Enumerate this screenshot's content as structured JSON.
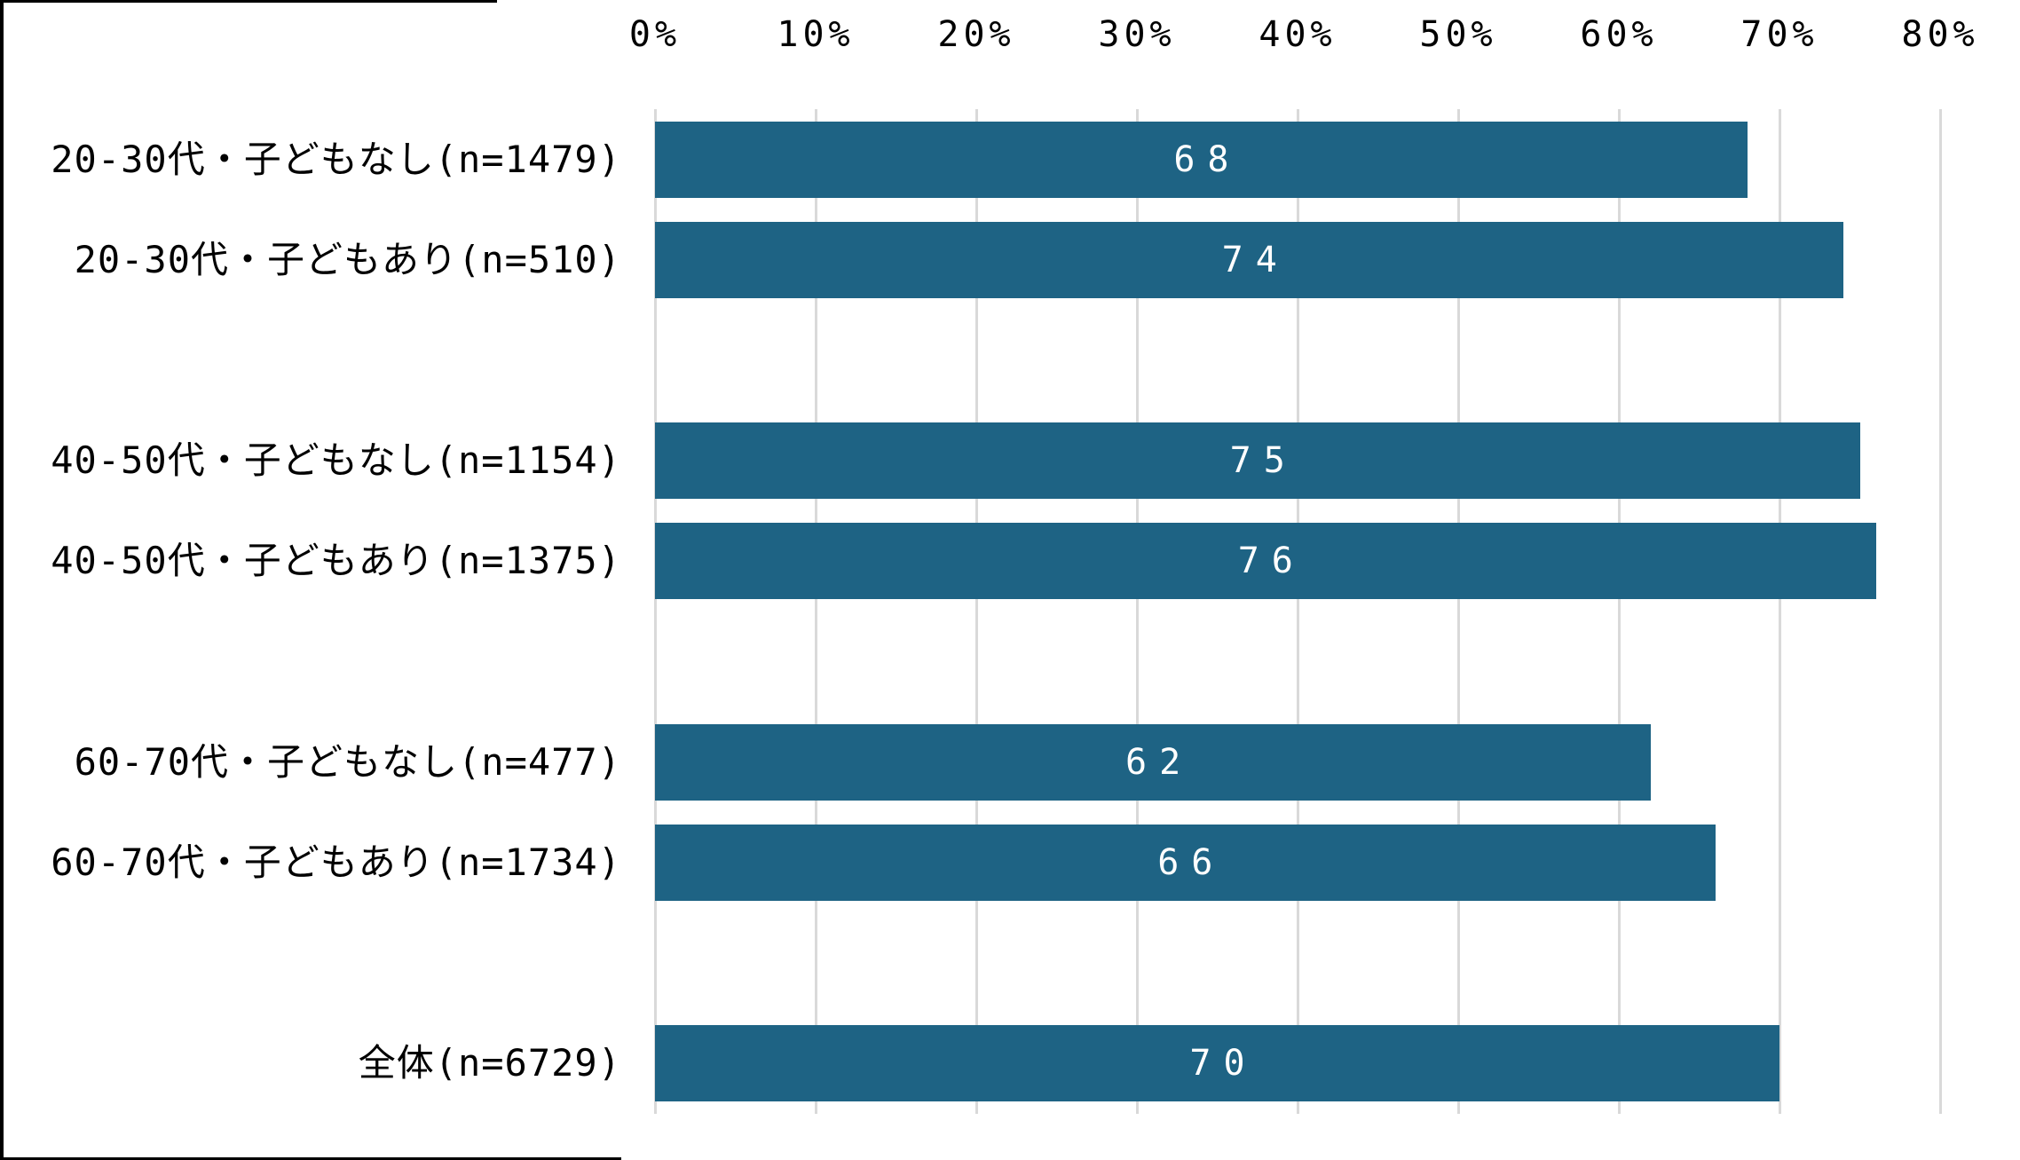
{
  "chart_data": {
    "type": "bar",
    "orientation": "horizontal",
    "title": "",
    "xlabel": "",
    "ylabel": "",
    "xlim": [
      0,
      80
    ],
    "x_tick_labels": [
      "0%",
      "10%",
      "20%",
      "30%",
      "40%",
      "50%",
      "60%",
      "70%",
      "80%"
    ],
    "grid": true,
    "legend": "none",
    "categories": [
      "20-30代・子どもなし(n=1479)",
      "20-30代・子どもあり(n=510)",
      "40-50代・子どもなし(n=1154)",
      "40-50代・子どもあり(n=1375)",
      "60-70代・子どもなし(n=477)",
      "60-70代・子どもあり(n=1734)",
      "全体(n=6729)"
    ],
    "values": [
      68,
      74,
      75,
      76,
      62,
      66,
      70
    ],
    "value_label_position": "inside-center",
    "colors": {
      "bar": "#1E6384",
      "value_text": "#FFFFFF",
      "gridline": "#D9D9D9",
      "tick_text": "#000000",
      "category_text": "#000000",
      "background": "#FFFFFF",
      "frame_edge": "#000000"
    }
  }
}
